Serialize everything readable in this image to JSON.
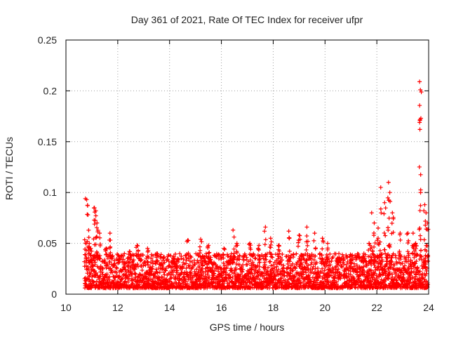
{
  "chart_data": {
    "type": "scatter",
    "title": "Day 361 of 2021, Rate Of TEC Index for receiver ufpr",
    "xlabel": "GPS time / hours",
    "ylabel": "ROTI / TECUs",
    "xlim": [
      10,
      24
    ],
    "ylim": [
      0,
      0.25
    ],
    "xticks": [
      10,
      12,
      14,
      16,
      18,
      20,
      22,
      24
    ],
    "xtick_labels": [
      "10",
      "12",
      "14",
      "16",
      "18",
      "20",
      "22",
      "24"
    ],
    "yticks": [
      0,
      0.05,
      0.1,
      0.15,
      0.2,
      0.25
    ],
    "ytick_labels": [
      "0",
      "0.05",
      "0.1",
      "0.15",
      "0.2",
      "0.25"
    ],
    "grid": true,
    "marker": "+",
    "series": [
      {
        "name": "ROTI",
        "color": "#ff0000",
        "points": [
          [
            10.75,
            0.094
          ],
          [
            10.8,
            0.093
          ],
          [
            10.85,
            0.078
          ],
          [
            10.9,
            0.05
          ],
          [
            10.95,
            0.045
          ],
          [
            11.1,
            0.085
          ],
          [
            11.15,
            0.082
          ],
          [
            11.2,
            0.07
          ],
          [
            11.3,
            0.06
          ],
          [
            11.55,
            0.045
          ],
          [
            11.7,
            0.06
          ],
          [
            12.05,
            0.035
          ],
          [
            12.45,
            0.042
          ],
          [
            12.75,
            0.048
          ],
          [
            13.15,
            0.045
          ],
          [
            13.5,
            0.04
          ],
          [
            14.15,
            0.035
          ],
          [
            14.7,
            0.053
          ],
          [
            15.2,
            0.054
          ],
          [
            15.5,
            0.048
          ],
          [
            16.1,
            0.045
          ],
          [
            16.45,
            0.063
          ],
          [
            16.6,
            0.05
          ],
          [
            17.1,
            0.05
          ],
          [
            17.45,
            0.048
          ],
          [
            17.7,
            0.066
          ],
          [
            17.9,
            0.055
          ],
          [
            18.2,
            0.048
          ],
          [
            18.6,
            0.062
          ],
          [
            19.0,
            0.058
          ],
          [
            19.3,
            0.066
          ],
          [
            19.6,
            0.06
          ],
          [
            19.9,
            0.055
          ],
          [
            20.1,
            0.05
          ],
          [
            20.5,
            0.035
          ],
          [
            21.0,
            0.038
          ],
          [
            21.5,
            0.04
          ],
          [
            21.7,
            0.05
          ],
          [
            21.8,
            0.08
          ],
          [
            21.9,
            0.07
          ],
          [
            22.05,
            0.065
          ],
          [
            22.15,
            0.105
          ],
          [
            22.3,
            0.09
          ],
          [
            22.45,
            0.11
          ],
          [
            22.5,
            0.1
          ],
          [
            22.6,
            0.08
          ],
          [
            22.9,
            0.06
          ],
          [
            23.2,
            0.06
          ],
          [
            23.4,
            0.06
          ],
          [
            23.5,
            0.05
          ],
          [
            23.65,
            0.209
          ],
          [
            23.68,
            0.201
          ],
          [
            23.7,
            0.173
          ],
          [
            23.85,
            0.088
          ],
          [
            23.9,
            0.08
          ],
          [
            23.95,
            0.07
          ]
        ]
      }
    ],
    "note": "dense band of points between about 0.005 and 0.04 for all times from 10.7 to 24 h"
  }
}
